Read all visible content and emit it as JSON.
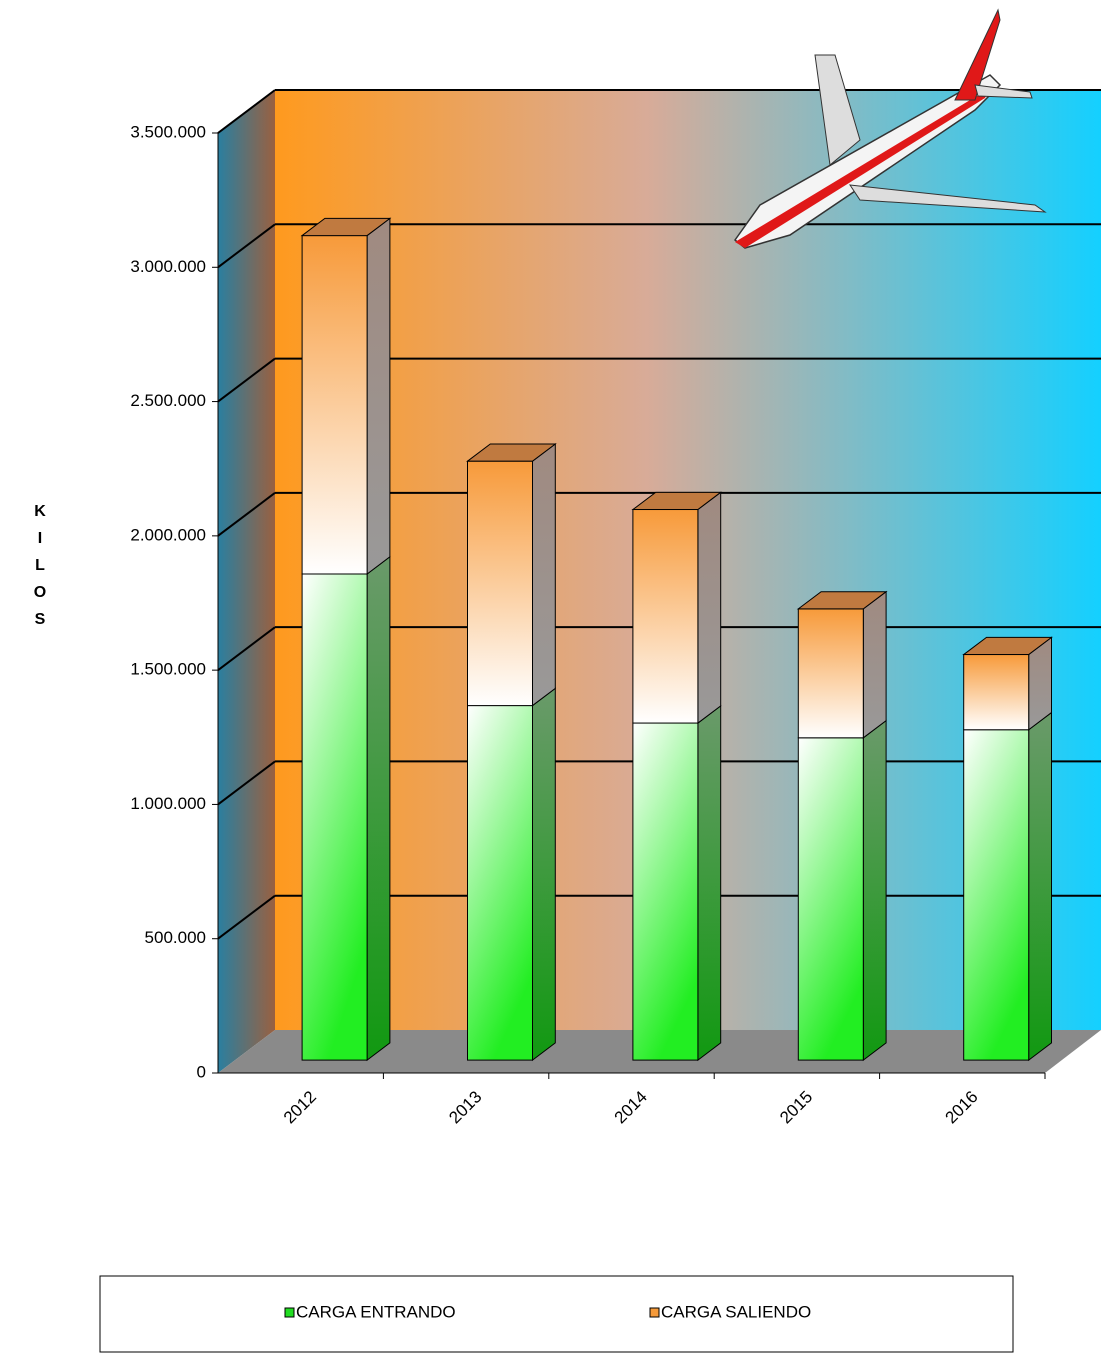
{
  "chart_data": {
    "type": "bar3d-stacked",
    "categories": [
      "2012",
      "2013",
      "2014",
      "2015",
      "2016"
    ],
    "series": [
      {
        "name": "CARGA ENTRANDO",
        "color": "#22dd22",
        "values": [
          1810000,
          1320000,
          1255000,
          1200000,
          1230000
        ]
      },
      {
        "name": "CARGA SALIENDO",
        "color": "#f59a3a",
        "values": [
          1260000,
          910000,
          795000,
          480000,
          280000
        ]
      }
    ],
    "y_axis_label": "KILOS",
    "ylim": [
      0,
      3500000
    ],
    "yticks": [
      0,
      {
        "value": 500000,
        "label": "500.000"
      },
      {
        "value": 1000000,
        "label": "1.000.000"
      },
      {
        "value": 1500000,
        "label": "1.500.000"
      },
      {
        "value": 2000000,
        "label": "2.000.000"
      },
      {
        "value": 2500000,
        "label": "2.500.000"
      },
      {
        "value": 3000000,
        "label": "3.000.000"
      },
      {
        "value": 3500000,
        "label": "3.500.000"
      }
    ],
    "grid": true
  }
}
